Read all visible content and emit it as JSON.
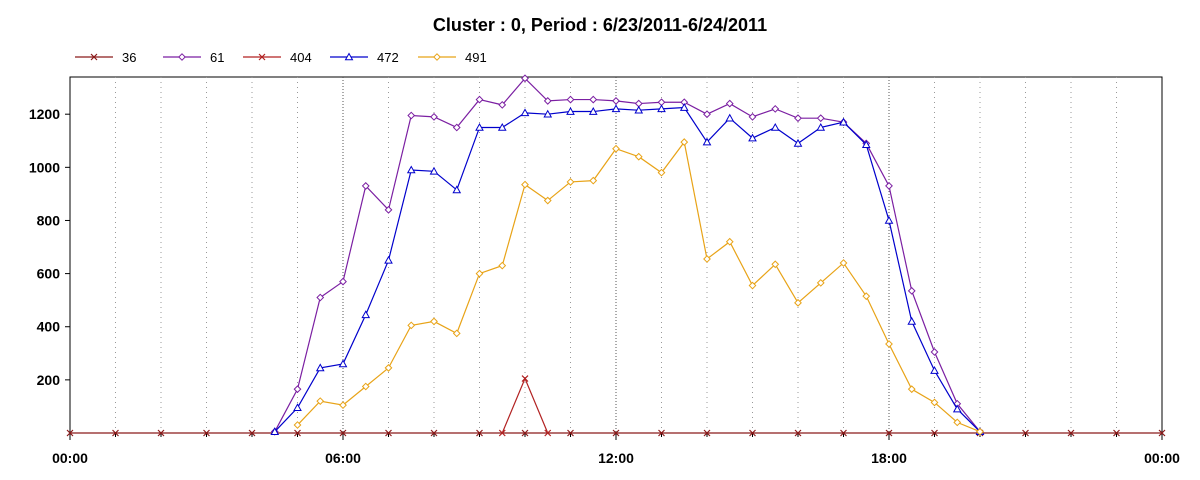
{
  "chart_data": {
    "type": "line",
    "title": "Cluster : 0, Period : 6/23/2011-6/24/2011",
    "xlabel": "",
    "ylabel": "",
    "x_ticks": [
      "00:00",
      "06:00",
      "12:00",
      "18:00",
      "00:00"
    ],
    "y_ticks": [
      "200",
      "400",
      "600",
      "800",
      "1000",
      "1200"
    ],
    "xlim": [
      0,
      24
    ],
    "ylim": [
      0,
      1340
    ],
    "grid": "vertical-dotted",
    "legend_position": "top-left",
    "series": [
      {
        "name": "36",
        "color": "#8b1a1a",
        "marker": "x",
        "x": [
          0,
          1,
          2,
          3,
          4,
          5,
          6,
          7,
          8,
          9,
          10,
          11,
          12,
          13,
          14,
          15,
          16,
          17,
          18,
          19,
          20,
          21,
          22,
          23,
          24
        ],
        "y": [
          0,
          0,
          0,
          0,
          0,
          0,
          0,
          0,
          0,
          0,
          0,
          0,
          0,
          0,
          0,
          0,
          0,
          0,
          0,
          0,
          0,
          0,
          0,
          0,
          0
        ]
      },
      {
        "name": "61",
        "color": "#7b1fa2",
        "marker": "diamond",
        "x": [
          4.5,
          5,
          5.5,
          6,
          6.5,
          7,
          7.5,
          8,
          8.5,
          9,
          9.5,
          10,
          10.5,
          11,
          11.5,
          12,
          12.5,
          13,
          13.5,
          14,
          14.5,
          15,
          15.5,
          16,
          16.5,
          17,
          17.5,
          18,
          18.5,
          19,
          19.5,
          20
        ],
        "y": [
          5,
          165,
          510,
          570,
          930,
          840,
          1195,
          1190,
          1150,
          1255,
          1235,
          1335,
          1250,
          1255,
          1255,
          1250,
          1240,
          1245,
          1245,
          1200,
          1240,
          1190,
          1220,
          1185,
          1185,
          1170,
          1090,
          930,
          535,
          305,
          110,
          5
        ]
      },
      {
        "name": "404",
        "color": "#b22222",
        "marker": "x",
        "x": [
          9.5,
          10,
          10.5
        ],
        "y": [
          0,
          205,
          0
        ]
      },
      {
        "name": "472",
        "color": "#0000cc",
        "marker": "triangle",
        "x": [
          4.5,
          5,
          5.5,
          6,
          6.5,
          7,
          7.5,
          8,
          8.5,
          9,
          9.5,
          10,
          10.5,
          11,
          11.5,
          12,
          12.5,
          13,
          13.5,
          14,
          14.5,
          15,
          15.5,
          16,
          16.5,
          17,
          17.5,
          18,
          18.5,
          19,
          19.5,
          20
        ],
        "y": [
          5,
          95,
          245,
          260,
          445,
          650,
          990,
          985,
          915,
          1150,
          1150,
          1205,
          1200,
          1210,
          1210,
          1220,
          1215,
          1220,
          1225,
          1095,
          1185,
          1110,
          1150,
          1090,
          1150,
          1170,
          1085,
          800,
          420,
          235,
          90,
          5
        ]
      },
      {
        "name": "491",
        "color": "#e8a317",
        "marker": "diamond",
        "x": [
          5,
          5.5,
          6,
          6.5,
          7,
          7.5,
          8,
          8.5,
          9,
          9.5,
          10,
          10.5,
          11,
          11.5,
          12,
          12.5,
          13,
          13.5,
          14,
          14.5,
          15,
          15.5,
          16,
          16.5,
          17,
          17.5,
          18,
          18.5,
          19,
          19.5,
          20
        ],
        "y": [
          30,
          120,
          105,
          175,
          245,
          405,
          420,
          375,
          600,
          630,
          935,
          875,
          945,
          950,
          1070,
          1040,
          980,
          1095,
          655,
          720,
          555,
          635,
          490,
          565,
          640,
          515,
          335,
          165,
          115,
          40,
          5
        ]
      }
    ]
  }
}
